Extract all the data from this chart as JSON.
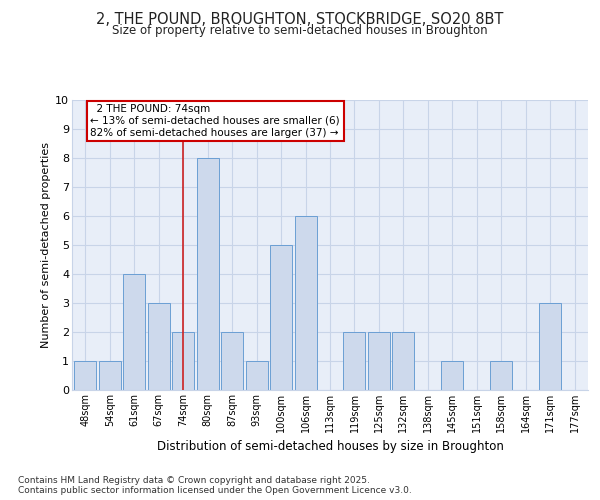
{
  "title": "2, THE POUND, BROUGHTON, STOCKBRIDGE, SO20 8BT",
  "subtitle": "Size of property relative to semi-detached houses in Broughton",
  "xlabel": "Distribution of semi-detached houses by size in Broughton",
  "ylabel": "Number of semi-detached properties",
  "categories": [
    "48sqm",
    "54sqm",
    "61sqm",
    "67sqm",
    "74sqm",
    "80sqm",
    "87sqm",
    "93sqm",
    "100sqm",
    "106sqm",
    "113sqm",
    "119sqm",
    "125sqm",
    "132sqm",
    "138sqm",
    "145sqm",
    "151sqm",
    "158sqm",
    "164sqm",
    "171sqm",
    "177sqm"
  ],
  "values": [
    1,
    1,
    4,
    3,
    2,
    8,
    2,
    1,
    5,
    6,
    0,
    2,
    2,
    2,
    0,
    1,
    0,
    1,
    0,
    3,
    0
  ],
  "bar_color": "#cdd9ec",
  "bar_edge_color": "#6b9fd4",
  "subject_bar_index": 4,
  "subject_label": "2 THE POUND: 74sqm",
  "pct_smaller": 13,
  "pct_smaller_count": 6,
  "pct_larger": 82,
  "pct_larger_count": 37,
  "annotation_box_color": "#ffffff",
  "annotation_box_edge_color": "#cc0000",
  "vline_color": "#cc2222",
  "ylim": [
    0,
    10
  ],
  "yticks": [
    0,
    1,
    2,
    3,
    4,
    5,
    6,
    7,
    8,
    9,
    10
  ],
  "grid_color": "#c8d4e8",
  "bg_color": "#e8eef8",
  "footer1": "Contains HM Land Registry data © Crown copyright and database right 2025.",
  "footer2": "Contains public sector information licensed under the Open Government Licence v3.0."
}
